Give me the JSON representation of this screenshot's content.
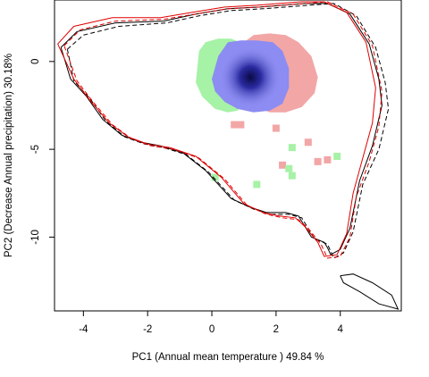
{
  "chart_data": {
    "type": "scatter",
    "title": "",
    "xlabel": "PC1 (Annual mean temperature ) 49.84 %",
    "ylabel": "PC2 (Decrease Annual precipitation) 30.18%",
    "xlim": [
      -4.9,
      5.9
    ],
    "ylim": [
      -14.2,
      3.5
    ],
    "x_ticks": [
      -4,
      -2,
      0,
      2,
      4
    ],
    "x_tick_labels": [
      "-4",
      "-2",
      "0",
      "2",
      "4"
    ],
    "y_ticks": [
      0,
      -5,
      -10
    ],
    "y_tick_labels": [
      "0",
      "-5",
      "-10"
    ],
    "grid": false,
    "legend": "none",
    "colors": {
      "black_envelope": "#000000",
      "red_envelope": "#e00000",
      "green_niche": "#a6f2a6",
      "red_niche": "#f2a6a6",
      "blue_niche": "#8c8cf2",
      "blue_center": "#0a0a46",
      "frame": "#000000"
    },
    "series": [
      {
        "kind": "envelope-solid",
        "color": "#000000",
        "x": [
          -4.7,
          -4.2,
          -3.0,
          -1.5,
          -0.5,
          0.5,
          1.5,
          2.2,
          2.9,
          3.6,
          4.3,
          4.9,
          5.2,
          5.3,
          5.0,
          4.6,
          4.3,
          4.0,
          3.7,
          3.6,
          3.5,
          3.1,
          2.7,
          2.3,
          1.7,
          1.2,
          0.6,
          -0.2,
          -0.9,
          -1.6,
          -2.2,
          -2.8,
          -3.4,
          -3.9,
          -4.4,
          -4.7
        ],
        "y": [
          0.8,
          1.7,
          2.2,
          2.3,
          2.7,
          3.0,
          3.1,
          3.2,
          3.3,
          3.3,
          2.7,
          1.0,
          -1.0,
          -2.5,
          -4.8,
          -6.8,
          -9.5,
          -10.7,
          -11.0,
          -10.6,
          -10.3,
          -10.0,
          -8.8,
          -8.6,
          -8.6,
          -8.3,
          -7.8,
          -6.2,
          -5.2,
          -4.8,
          -4.6,
          -4.2,
          -3.3,
          -2.0,
          -1.0,
          0.8
        ]
      },
      {
        "kind": "envelope-dashed",
        "color": "#000000",
        "x": [
          -4.5,
          -4.0,
          -2.9,
          -1.4,
          -0.4,
          0.6,
          1.6,
          2.3,
          3.0,
          3.8,
          4.5,
          5.1,
          5.4,
          5.5,
          5.2,
          4.7,
          4.4,
          4.1,
          3.8,
          3.7,
          3.6,
          3.2,
          2.8,
          2.4,
          1.8,
          1.3,
          0.7,
          -0.1,
          -0.8,
          -1.5,
          -2.1,
          -2.7,
          -3.3,
          -3.8,
          -4.3,
          -4.5
        ],
        "y": [
          0.7,
          1.5,
          2.0,
          2.2,
          2.6,
          2.9,
          3.0,
          3.1,
          3.2,
          3.3,
          2.6,
          0.8,
          -1.2,
          -2.7,
          -5.0,
          -7.0,
          -9.7,
          -10.9,
          -11.2,
          -10.8,
          -10.4,
          -10.1,
          -8.9,
          -8.7,
          -8.7,
          -8.4,
          -7.9,
          -6.3,
          -5.3,
          -4.9,
          -4.7,
          -4.3,
          -3.4,
          -2.1,
          -1.1,
          0.7
        ]
      },
      {
        "kind": "envelope-solid",
        "color": "#e00000",
        "x": [
          -4.8,
          -4.3,
          -3.1,
          -1.6,
          -0.6,
          0.4,
          1.4,
          2.1,
          2.8,
          3.5,
          4.2,
          4.8,
          5.1,
          5.0,
          4.7,
          4.4,
          4.2,
          3.9,
          3.5,
          3.3,
          2.9,
          2.6,
          2.1,
          1.6,
          1.0,
          0.3,
          -0.5,
          -1.3,
          -2.0,
          -2.6,
          -3.2,
          -3.8,
          -4.3,
          -4.8
        ],
        "y": [
          1.0,
          2.0,
          2.5,
          2.5,
          2.8,
          3.1,
          3.2,
          3.3,
          3.4,
          3.4,
          2.8,
          1.1,
          -1.5,
          -3.5,
          -5.5,
          -7.5,
          -9.8,
          -11.0,
          -11.1,
          -10.3,
          -9.4,
          -8.9,
          -8.8,
          -8.6,
          -8.1,
          -6.6,
          -5.4,
          -4.9,
          -4.7,
          -4.3,
          -3.5,
          -2.2,
          -1.0,
          1.0
        ]
      },
      {
        "kind": "envelope-dashed",
        "color": "#e00000",
        "x": [
          -4.6,
          -4.1,
          -3.0,
          -1.5,
          -0.5,
          0.5,
          1.5,
          2.2,
          2.9,
          3.6,
          4.4,
          5.0,
          5.3,
          5.2,
          4.9,
          4.5,
          4.3,
          4.0,
          3.6,
          3.4,
          3.0,
          2.7,
          2.2,
          1.7,
          1.1,
          0.4,
          -0.4,
          -1.2,
          -1.9,
          -2.5,
          -3.1,
          -3.7,
          -4.2,
          -4.6
        ],
        "y": [
          0.9,
          1.8,
          2.3,
          2.4,
          2.7,
          3.0,
          3.1,
          3.2,
          3.3,
          3.4,
          2.7,
          0.9,
          -1.7,
          -3.7,
          -5.7,
          -7.7,
          -10.0,
          -11.1,
          -11.2,
          -10.4,
          -9.5,
          -9.0,
          -8.9,
          -8.7,
          -8.2,
          -6.7,
          -5.5,
          -5.0,
          -4.8,
          -4.4,
          -3.6,
          -2.3,
          -1.1,
          0.9
        ]
      },
      {
        "kind": "envelope-island",
        "color": "#000000",
        "x": [
          4.0,
          4.4,
          5.0,
          5.6,
          5.8,
          5.2,
          4.6,
          4.1,
          4.0
        ],
        "y": [
          -12.2,
          -12.1,
          -12.6,
          -13.3,
          -14.1,
          -13.8,
          -13.1,
          -12.6,
          -12.2
        ]
      },
      {
        "kind": "niche-green",
        "color": "#a6f2a6",
        "x": [
          -0.4,
          -0.2,
          0.2,
          0.6,
          1.0,
          1.0,
          0.8,
          0.5,
          0.1,
          -0.3,
          -0.5,
          -0.4
        ],
        "y": [
          0.6,
          1.1,
          1.3,
          1.3,
          1.0,
          -2.4,
          -2.8,
          -2.9,
          -2.7,
          -2.0,
          -1.2,
          0.6
        ]
      },
      {
        "kind": "niche-red",
        "color": "#f2a6a6",
        "x": [
          1.0,
          1.3,
          1.8,
          2.3,
          2.7,
          3.1,
          3.3,
          3.2,
          2.8,
          2.3,
          1.8,
          1.4,
          1.0,
          1.0
        ],
        "y": [
          1.1,
          1.5,
          1.6,
          1.5,
          1.1,
          0.3,
          -0.9,
          -1.8,
          -2.6,
          -2.9,
          -2.9,
          -2.6,
          -2.3,
          1.1
        ]
      },
      {
        "kind": "niche-blue",
        "color": "#8c8cf2",
        "x": [
          0.5,
          0.9,
          1.4,
          1.9,
          2.2,
          2.4,
          2.4,
          2.2,
          1.8,
          1.3,
          0.8,
          0.4,
          0.1,
          0.0,
          0.2,
          0.5
        ],
        "y": [
          1.1,
          1.2,
          1.2,
          1.1,
          0.6,
          -0.4,
          -1.5,
          -2.4,
          -2.8,
          -2.9,
          -2.7,
          -2.3,
          -1.7,
          -1.0,
          0.3,
          1.1
        ]
      }
    ],
    "density_center": {
      "x": 1.2,
      "y": -0.9
    },
    "patches": [
      {
        "color": "#f2a6a6",
        "x": 0.7,
        "y": -3.6
      },
      {
        "color": "#f2a6a6",
        "x": 0.9,
        "y": -3.6
      },
      {
        "color": "#f2a6a6",
        "x": 2.0,
        "y": -3.8
      },
      {
        "color": "#f2a6a6",
        "x": 3.0,
        "y": -4.6
      },
      {
        "color": "#f2a6a6",
        "x": 3.3,
        "y": -5.7
      },
      {
        "color": "#f2a6a6",
        "x": 2.2,
        "y": -5.9
      },
      {
        "color": "#f2a6a6",
        "x": 3.6,
        "y": -5.6
      },
      {
        "color": "#a6f2a6",
        "x": 2.5,
        "y": -4.9
      },
      {
        "color": "#a6f2a6",
        "x": 2.4,
        "y": -6.1
      },
      {
        "color": "#a6f2a6",
        "x": 2.5,
        "y": -6.5
      },
      {
        "color": "#a6f2a6",
        "x": 3.9,
        "y": -5.4
      },
      {
        "color": "#a6f2a6",
        "x": 0.1,
        "y": -6.6
      },
      {
        "color": "#a6f2a6",
        "x": 1.4,
        "y": -7.0
      }
    ]
  }
}
